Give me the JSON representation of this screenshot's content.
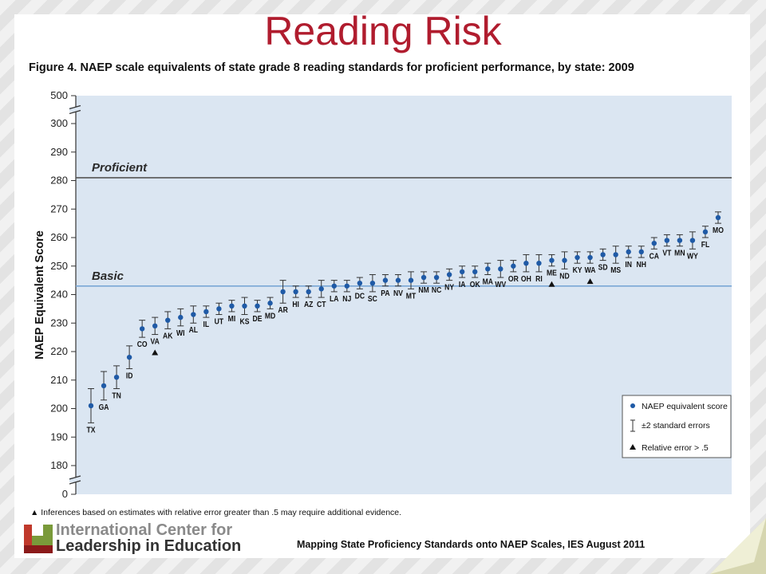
{
  "slide": {
    "title": "Reading Risk",
    "source": "Mapping State Proficiency Standards onto NAEP Scales, IES August 2011",
    "logo_line1": "International Center for",
    "logo_line2": "Leadership in Education"
  },
  "colors": {
    "title": "#b01c2e",
    "plot_bg": "#dbe6f2",
    "point": "#1f5aa6",
    "basic_line": "#7aa7d6",
    "proficient_line": "#555555"
  },
  "chart_data": {
    "type": "scatter",
    "title": "Figure 4.  NAEP scale equivalents of state grade 8 reading standards for proficient performance, by state: 2009",
    "ylabel": "NAEP Equivalent Score",
    "yticks": [
      0,
      180,
      190,
      200,
      210,
      220,
      230,
      240,
      250,
      260,
      270,
      280,
      290,
      300,
      500
    ],
    "axis_break": "between 0–180 and 300–500",
    "reference_lines": [
      {
        "label": "Proficient",
        "value": 281
      },
      {
        "label": "Basic",
        "value": 243
      }
    ],
    "legend": {
      "placement": "bottom-right",
      "items": [
        "NAEP equivalent score",
        "±2 standard errors",
        "Relative error > .5"
      ]
    },
    "footnote": "▲ Inferences based on estimates with relative error greater than .5 may require additional evidence.",
    "points": [
      {
        "state": "TX",
        "score": 201,
        "se2": 6,
        "label_pos": "below"
      },
      {
        "state": "GA",
        "score": 208,
        "se2": 5,
        "label_pos": "below"
      },
      {
        "state": "TN",
        "score": 211,
        "se2": 4,
        "label_pos": "below"
      },
      {
        "state": "ID",
        "score": 218,
        "se2": 4,
        "label_pos": "below"
      },
      {
        "state": "CO",
        "score": 228,
        "se2": 3,
        "label_pos": "below"
      },
      {
        "state": "VA",
        "score": 229,
        "se2": 3,
        "label_pos": "below",
        "flag": true
      },
      {
        "state": "AK",
        "score": 231,
        "se2": 3,
        "label_pos": "below"
      },
      {
        "state": "WI",
        "score": 232,
        "se2": 3,
        "label_pos": "below"
      },
      {
        "state": "AL",
        "score": 233,
        "se2": 3,
        "label_pos": "below"
      },
      {
        "state": "IL",
        "score": 234,
        "se2": 2,
        "label_pos": "below"
      },
      {
        "state": "UT",
        "score": 235,
        "se2": 2,
        "label_pos": "below"
      },
      {
        "state": "MI",
        "score": 236,
        "se2": 2,
        "label_pos": "below"
      },
      {
        "state": "KS",
        "score": 236,
        "se2": 3,
        "label_pos": "below"
      },
      {
        "state": "DE",
        "score": 236,
        "se2": 2,
        "label_pos": "below"
      },
      {
        "state": "MD",
        "score": 237,
        "se2": 2,
        "label_pos": "below"
      },
      {
        "state": "AR",
        "score": 241,
        "se2": 4,
        "label_pos": "below"
      },
      {
        "state": "HI",
        "score": 241,
        "se2": 2,
        "label_pos": "below"
      },
      {
        "state": "AZ",
        "score": 241,
        "se2": 2,
        "label_pos": "below"
      },
      {
        "state": "CT",
        "score": 242,
        "se2": 3,
        "label_pos": "below"
      },
      {
        "state": "LA",
        "score": 243,
        "se2": 2,
        "label_pos": "below"
      },
      {
        "state": "NJ",
        "score": 243,
        "se2": 2,
        "label_pos": "below"
      },
      {
        "state": "DC",
        "score": 244,
        "se2": 2,
        "label_pos": "below"
      },
      {
        "state": "SC",
        "score": 244,
        "se2": 3,
        "label_pos": "below"
      },
      {
        "state": "PA",
        "score": 245,
        "se2": 2,
        "label_pos": "below"
      },
      {
        "state": "NV",
        "score": 245,
        "se2": 2,
        "label_pos": "below"
      },
      {
        "state": "MT",
        "score": 245,
        "se2": 3,
        "label_pos": "below"
      },
      {
        "state": "NM",
        "score": 246,
        "se2": 2,
        "label_pos": "below"
      },
      {
        "state": "NC",
        "score": 246,
        "se2": 2,
        "label_pos": "below"
      },
      {
        "state": "NY",
        "score": 247,
        "se2": 2,
        "label_pos": "below"
      },
      {
        "state": "IA",
        "score": 248,
        "se2": 2,
        "label_pos": "below"
      },
      {
        "state": "OK",
        "score": 248,
        "se2": 2,
        "label_pos": "below"
      },
      {
        "state": "MA",
        "score": 249,
        "se2": 2,
        "label_pos": "below"
      },
      {
        "state": "WV",
        "score": 249,
        "se2": 3,
        "label_pos": "below"
      },
      {
        "state": "OR",
        "score": 250,
        "se2": 2,
        "label_pos": "below"
      },
      {
        "state": "OH",
        "score": 251,
        "se2": 3,
        "label_pos": "below"
      },
      {
        "state": "RI",
        "score": 251,
        "se2": 3,
        "label_pos": "below"
      },
      {
        "state": "ME",
        "score": 252,
        "se2": 2,
        "label_pos": "below",
        "flag": true
      },
      {
        "state": "ND",
        "score": 252,
        "se2": 3,
        "label_pos": "below"
      },
      {
        "state": "KY",
        "score": 253,
        "se2": 2,
        "label_pos": "below"
      },
      {
        "state": "WA",
        "score": 253,
        "se2": 2,
        "label_pos": "below",
        "flag": true
      },
      {
        "state": "SD",
        "score": 254,
        "se2": 2,
        "label_pos": "below"
      },
      {
        "state": "MS",
        "score": 254,
        "se2": 3,
        "label_pos": "below"
      },
      {
        "state": "IN",
        "score": 255,
        "se2": 2,
        "label_pos": "below"
      },
      {
        "state": "NH",
        "score": 255,
        "se2": 2,
        "label_pos": "below"
      },
      {
        "state": "CA",
        "score": 258,
        "se2": 2,
        "label_pos": "below"
      },
      {
        "state": "VT",
        "score": 259,
        "se2": 2,
        "label_pos": "below"
      },
      {
        "state": "MN",
        "score": 259,
        "se2": 2,
        "label_pos": "below"
      },
      {
        "state": "WY",
        "score": 259,
        "se2": 3,
        "label_pos": "below"
      },
      {
        "state": "FL",
        "score": 262,
        "se2": 2,
        "label_pos": "below"
      },
      {
        "state": "MO",
        "score": 267,
        "se2": 2,
        "label_pos": "below"
      }
    ]
  }
}
